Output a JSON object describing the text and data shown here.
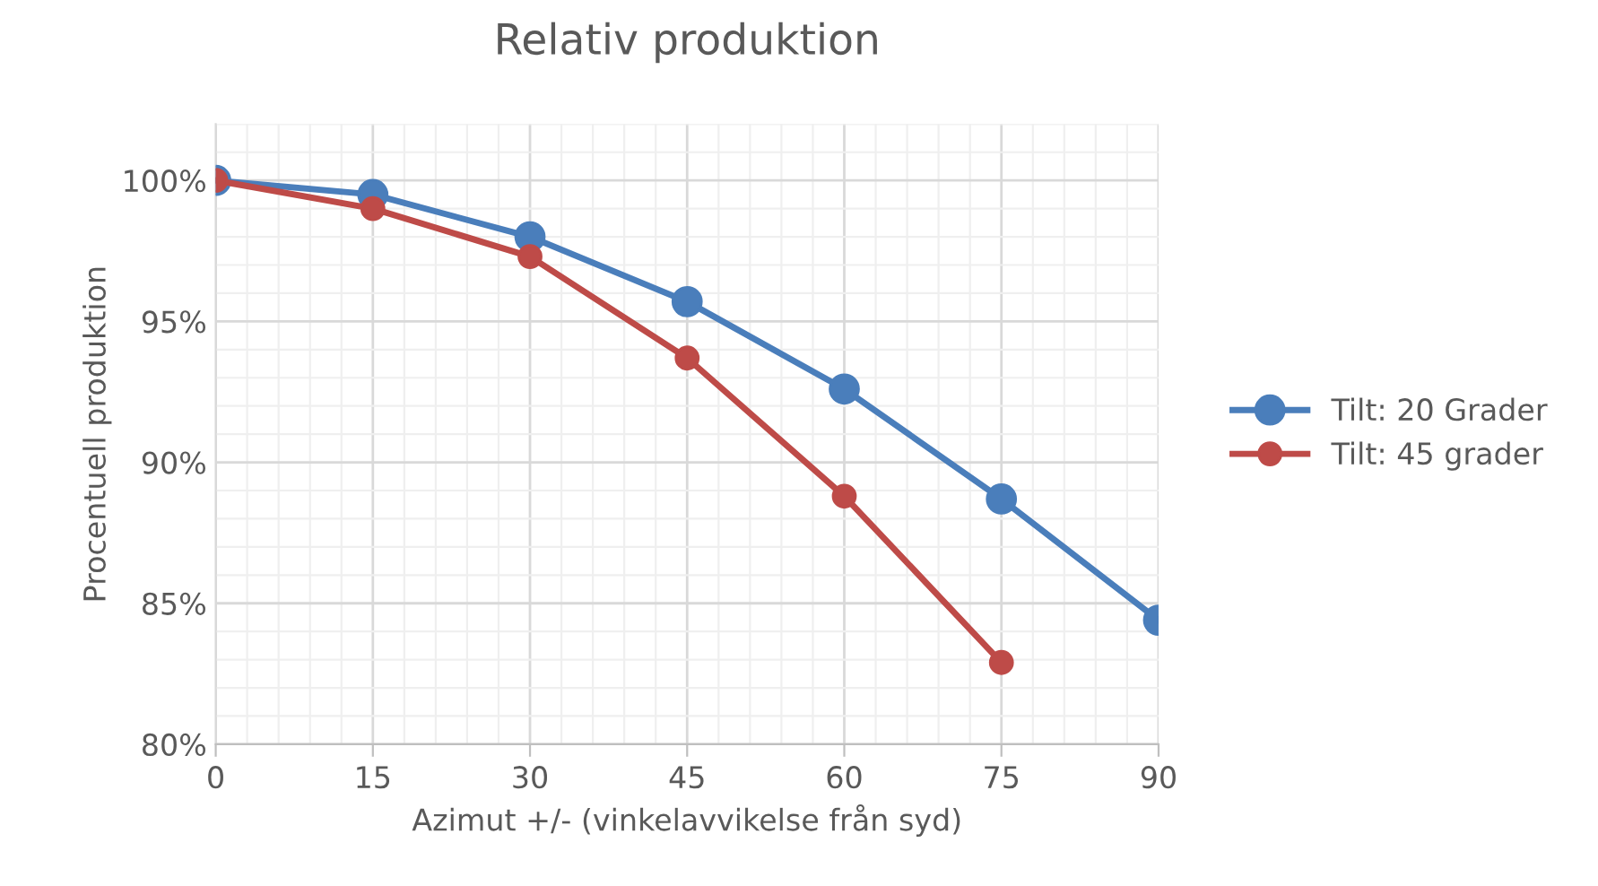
{
  "chart_data": {
    "type": "line",
    "title": "Relativ produktion",
    "xlabel": "Azimut +/- (vinkelavvikelse från syd)",
    "ylabel": "Procentuell produktion",
    "x": [
      0,
      15,
      30,
      45,
      60,
      75,
      90
    ],
    "series": [
      {
        "name": "Tilt: 20 Grader",
        "color": "#4a7ebb",
        "values": [
          100,
          99.5,
          98.0,
          95.7,
          92.6,
          88.7,
          84.4
        ]
      },
      {
        "name": "Tilt: 45 grader",
        "color": "#be4b48",
        "values": [
          100,
          99.0,
          97.3,
          93.7,
          88.8,
          82.9,
          null
        ]
      }
    ],
    "xlim": [
      0,
      90
    ],
    "xticks": [
      0,
      15,
      30,
      45,
      60,
      75,
      90
    ],
    "ylim": [
      80,
      102
    ],
    "yticks": [
      {
        "value": 80,
        "label": "80%"
      },
      {
        "value": 85,
        "label": "85%"
      },
      {
        "value": 90,
        "label": "90%"
      },
      {
        "value": 95,
        "label": "95%"
      },
      {
        "value": 100,
        "label": "100%"
      }
    ],
    "grid": true,
    "legend": "right",
    "marker": "circle",
    "line_style": "solid"
  }
}
